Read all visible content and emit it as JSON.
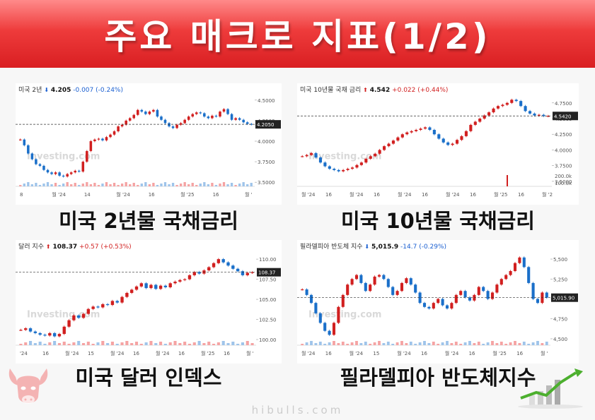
{
  "banner": {
    "title": "주요 매크로 지표(1/2)"
  },
  "footer": {
    "site": "hibulls.com"
  },
  "charts": [
    {
      "id": "us2y",
      "caption": "미국 2년물 국채금리",
      "header": {
        "name": "미국 2년",
        "price": "4.205",
        "change": "-0.007",
        "pct": "(-0.24%)",
        "direction": "down"
      },
      "watermark": "Investing.com",
      "color_up": "#d11f1f",
      "color_down": "#1a6fc9",
      "chart_data": {
        "type": "line",
        "x_ticks": [
          "8",
          "월 '24",
          "14",
          "월 '24",
          "16",
          "월 '25",
          "16",
          "월 '"
        ],
        "y_ticks": [
          4.5,
          4.25,
          4.0,
          3.75,
          3.5
        ],
        "y_tick_labels": [
          "4.5000",
          "4.2500",
          "4.0000",
          "3.7500",
          "3.5000"
        ],
        "ylim": [
          3.45,
          4.55
        ],
        "current_label": "4.2050",
        "current": 4.205,
        "values": [
          4.02,
          3.95,
          3.85,
          3.78,
          3.72,
          3.7,
          3.65,
          3.62,
          3.6,
          3.62,
          3.58,
          3.57,
          3.6,
          3.62,
          3.64,
          3.63,
          3.75,
          3.88,
          4.0,
          4.02,
          4.03,
          4.01,
          4.05,
          4.08,
          4.12,
          4.18,
          4.2,
          4.25,
          4.28,
          4.32,
          4.38,
          4.36,
          4.33,
          4.36,
          4.38,
          4.3,
          4.26,
          4.22,
          4.18,
          4.16,
          4.2,
          4.22,
          4.26,
          4.3,
          4.33,
          4.35,
          4.34,
          4.3,
          4.28,
          4.31,
          4.3,
          4.36,
          4.39,
          4.33,
          4.26,
          4.28,
          4.26,
          4.23,
          4.21,
          4.205
        ]
      }
    },
    {
      "id": "us10y",
      "caption": "미국 10년물 국채금리",
      "header": {
        "name": "미국 10년물 국채 금리",
        "price": "4.542",
        "change": "+0.022",
        "pct": "(+0.44%)",
        "direction": "up"
      },
      "watermark": "Investing.com",
      "color_up": "#d11f1f",
      "color_down": "#1a6fc9",
      "chart_data": {
        "type": "line",
        "x_ticks": [
          "월 '24",
          "16",
          "월 '24",
          "16",
          "월 '24",
          "16",
          "월 '24",
          "16",
          "월 '25",
          "16",
          "월 '2"
        ],
        "y_ticks": [
          4.75,
          4.5,
          4.25,
          4.0,
          3.75,
          3.5
        ],
        "y_tick_labels": [
          "4.7500",
          "4.5000",
          "4.2500",
          "4.0000",
          "3.7500",
          "3.5000"
        ],
        "ylim": [
          3.42,
          4.86
        ],
        "current_label": "4.5420",
        "current": 4.542,
        "volume_label": "200.0k",
        "volume_label_2": "100.0k",
        "values": [
          3.9,
          3.92,
          3.95,
          3.88,
          3.8,
          3.74,
          3.7,
          3.68,
          3.66,
          3.68,
          3.7,
          3.72,
          3.76,
          3.8,
          3.86,
          3.9,
          3.94,
          4.0,
          4.06,
          4.1,
          4.15,
          4.2,
          4.25,
          4.28,
          4.3,
          4.32,
          4.34,
          4.36,
          4.32,
          4.25,
          4.18,
          4.12,
          4.08,
          4.1,
          4.16,
          4.22,
          4.3,
          4.4,
          4.45,
          4.5,
          4.55,
          4.6,
          4.66,
          4.7,
          4.72,
          4.75,
          4.8,
          4.78,
          4.7,
          4.62,
          4.58,
          4.55,
          4.56,
          4.54,
          4.542
        ]
      }
    },
    {
      "id": "dxy",
      "caption": "미국 달러 인덱스",
      "header": {
        "name": "달러 지수",
        "price": "108.37",
        "change": "+0.57",
        "pct": "(+0.53%)",
        "direction": "up"
      },
      "watermark": "Investing.com",
      "color_up": "#d11f1f",
      "color_down": "#1a6fc9",
      "chart_data": {
        "type": "line",
        "x_ticks": [
          "'24",
          "16",
          "월 '24",
          "15",
          "월 '24",
          "16",
          "월 '24",
          "16",
          "월 '25",
          "16",
          "월 '"
        ],
        "y_ticks": [
          110.0,
          107.5,
          105.0,
          102.5,
          100.0
        ],
        "y_tick_labels": [
          "110.00",
          "107.50",
          "105.00",
          "102.50",
          "100.00"
        ],
        "ylim": [
          99.3,
          110.8
        ],
        "current_label": "108.37",
        "current": 108.37,
        "values": [
          101.2,
          101.4,
          101.0,
          100.8,
          100.6,
          100.5,
          100.8,
          100.4,
          100.7,
          101.6,
          102.4,
          103.0,
          102.7,
          103.2,
          103.8,
          104.1,
          104.0,
          104.4,
          104.3,
          104.8,
          104.6,
          105.3,
          105.8,
          106.2,
          106.6,
          107.0,
          106.4,
          106.8,
          106.3,
          106.7,
          106.5,
          107.0,
          107.2,
          107.4,
          107.5,
          108.0,
          108.4,
          108.2,
          108.6,
          109.0,
          109.5,
          110.0,
          109.6,
          109.2,
          108.8,
          108.5,
          108.0,
          108.3,
          108.37
        ]
      }
    },
    {
      "id": "sox",
      "caption": "필라델피아 반도체지수",
      "header": {
        "name": "필라델피아 반도체 지수",
        "price": "5,015.9",
        "change": "-14.7",
        "pct": "(-0.29%)",
        "direction": "down"
      },
      "watermark": "Investing.com",
      "color_up": "#d11f1f",
      "color_down": "#1a6fc9",
      "chart_data": {
        "type": "line",
        "x_ticks": [
          "월 '24",
          "16",
          "월 '24",
          "15",
          "월 '24",
          "16",
          "월 '24",
          "16",
          "월 '25",
          "16",
          "월 '"
        ],
        "y_ticks": [
          5500,
          5250,
          5000,
          4750,
          4500
        ],
        "y_tick_labels": [
          "5,500",
          "5,250",
          "5,000",
          "4,750",
          "4,500"
        ],
        "ylim": [
          4420,
          5580
        ],
        "current_label": "5,015.90",
        "current": 5015.9,
        "values": [
          5120,
          5050,
          4950,
          4820,
          4700,
          4600,
          4550,
          4700,
          4900,
          5050,
          5180,
          5250,
          5300,
          5200,
          5100,
          5180,
          5280,
          5300,
          5250,
          5150,
          5050,
          5100,
          5200,
          5260,
          5180,
          5080,
          4950,
          4900,
          4880,
          4950,
          5000,
          4920,
          4880,
          4950,
          5050,
          5100,
          5020,
          4980,
          5050,
          5150,
          5100,
          5000,
          5080,
          5180,
          5250,
          5300,
          5350,
          5450,
          5520,
          5400,
          5200,
          5000,
          4950,
          5080,
          5015.9
        ]
      }
    }
  ]
}
